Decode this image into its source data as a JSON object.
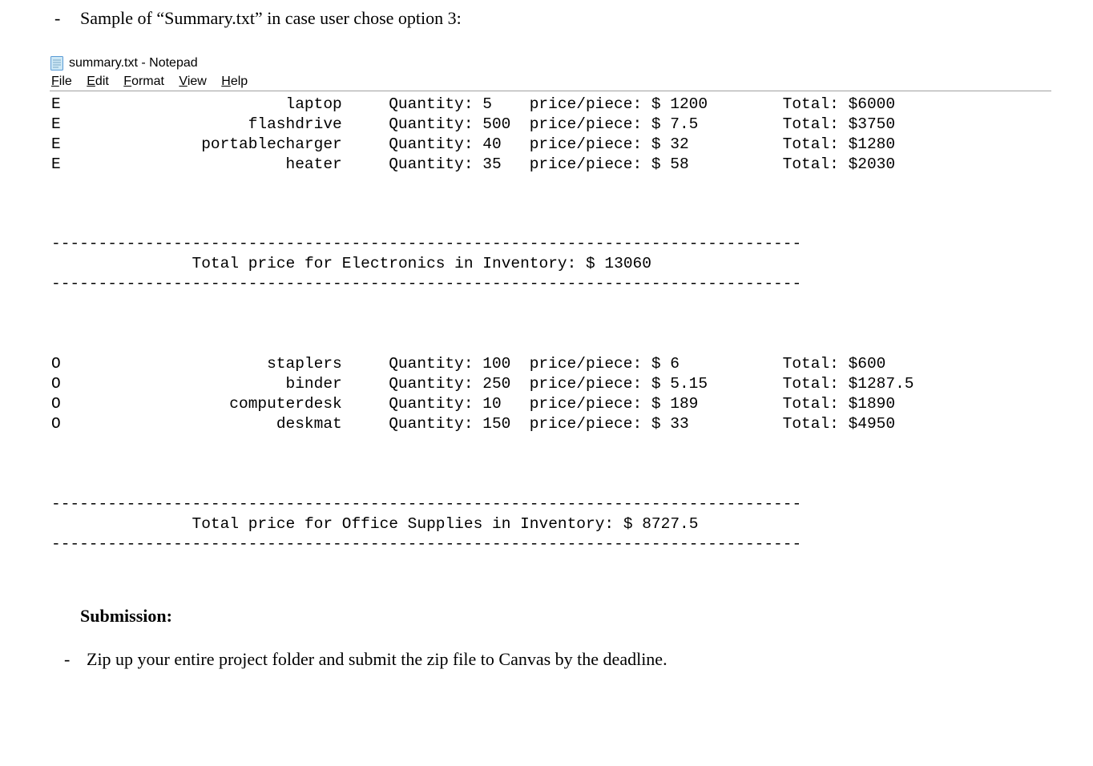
{
  "doc": {
    "bullet_dash": "-",
    "bullet_text": "Sample of “Summary.txt” in case user chose option 3:",
    "submission_heading": "Submission:",
    "final_bullet": "Zip up your entire project folder and submit the zip file to Canvas by the deadline."
  },
  "notepad": {
    "title": "summary.txt - Notepad",
    "menu": {
      "file": "File",
      "edit": "Edit",
      "format": "Format",
      "view": "View",
      "help": "Help"
    },
    "qty_label": "Quantity: ",
    "price_label": "price/piece: $ ",
    "total_label": "Total: $",
    "dash_line": "--------------------------------------------------------------------------------",
    "sections": [
      {
        "rows": [
          {
            "cat": "E",
            "name": "laptop",
            "qty": "5",
            "price": "1200",
            "total": "6000"
          },
          {
            "cat": "E",
            "name": "flashdrive",
            "qty": "500",
            "price": "7.5",
            "total": "3750"
          },
          {
            "cat": "E",
            "name": "portablecharger",
            "qty": "40",
            "price": "32",
            "total": "1280"
          },
          {
            "cat": "E",
            "name": "heater",
            "qty": "35",
            "price": "58",
            "total": "2030"
          }
        ],
        "summary": "               Total price for Electronics in Inventory: $ 13060"
      },
      {
        "rows": [
          {
            "cat": "O",
            "name": "staplers",
            "qty": "100",
            "price": "6",
            "total": "600"
          },
          {
            "cat": "O",
            "name": "binder",
            "qty": "250",
            "price": "5.15",
            "total": "1287.5"
          },
          {
            "cat": "O",
            "name": "computerdesk",
            "qty": "10",
            "price": "189",
            "total": "1890"
          },
          {
            "cat": "O",
            "name": "deskmat",
            "qty": "150",
            "price": "33",
            "total": "4950"
          }
        ],
        "summary": "               Total price for Office Supplies in Inventory: $ 8727.5"
      }
    ]
  },
  "colors": {
    "text": "#000000",
    "window_border": "#a0a0a0",
    "icon_fill": "#cde8f6",
    "icon_stroke": "#5b9bd5",
    "icon_lines": "#7aa7c7"
  }
}
